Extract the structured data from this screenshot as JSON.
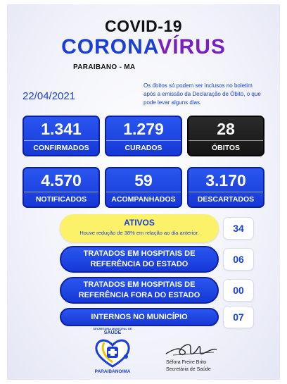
{
  "header": {
    "title": "COVID-19",
    "brand_part1": "CORONA",
    "brand_part2": "VÍRUS",
    "city": "PARAIBANO - MA"
  },
  "date": "22/04/2021",
  "note": "Os óbitos só podem ser inclusos no boletim após a emissão da Declaração de Óbito, o que pode levar alguns dias.",
  "stats": [
    {
      "value": "1.341",
      "label": "CONFIRMADOS"
    },
    {
      "value": "1.279",
      "label": "CURADOS"
    },
    {
      "value": "28",
      "label": "ÓBITOS"
    },
    {
      "value": "4.570",
      "label": "NOTIFICADOS"
    },
    {
      "value": "59",
      "label": "ACOMPANHADOS"
    },
    {
      "value": "3.170",
      "label": "DESCARTADOS"
    }
  ],
  "ativos": {
    "label": "ATIVOS",
    "subtext": "Houve redução de 38% em relação ao dia anterior.",
    "value": "34"
  },
  "rows": [
    {
      "label": "TRATADOS EM HOSPITAIS DE REFERÊNCIA DO ESTADO",
      "value": "06"
    },
    {
      "label": "TRATADOS EM HOSPITAIS DE REFERÊNCIA FORA DO ESTADO",
      "value": "00"
    },
    {
      "label": "INTERNOS NO MUNICÍPIO",
      "value": "07"
    }
  ],
  "logo": {
    "caption_top": "SECRETARIA MUNICIPAL DE",
    "caption_main": "SAÚDE",
    "caption_bottom": "PARAIBANO/MA",
    "icon": "heart-stethoscope-emblem"
  },
  "signature": {
    "name": "Séfora Freire Brito",
    "role": "Secretária de Saúde"
  },
  "colors": {
    "primary_blue": "#1a3fd6",
    "purple": "#7a1fc2",
    "dark_box": "#151515",
    "highlight_yellow": "#fbf26a"
  }
}
